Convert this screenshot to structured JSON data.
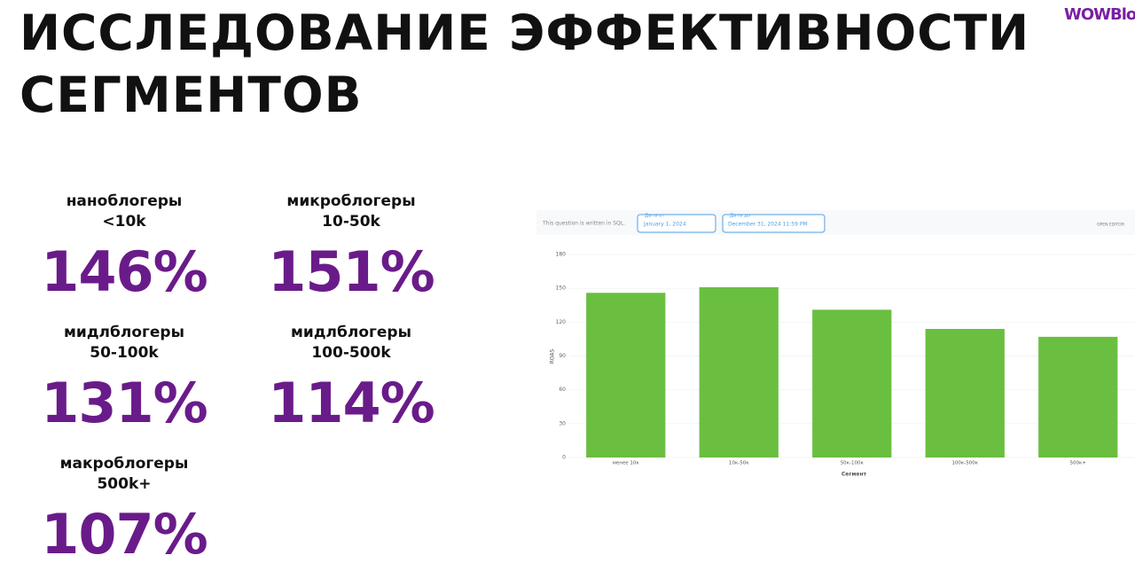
{
  "header": {
    "title_lines": [
      "ИССЛЕДОВАНИЕ ЭФФЕКТИВНОСТИ",
      "СЕГМЕНТОВ"
    ],
    "logo": "WOWBlog"
  },
  "stats": [
    {
      "label_lines": [
        "наноблогеры",
        "<10k"
      ],
      "value": "146%"
    },
    {
      "label_lines": [
        "микроблогеры",
        "10-50k"
      ],
      "value": "151%"
    },
    {
      "label_lines": [
        "мидлблогеры",
        "50-100k"
      ],
      "value": "131%"
    },
    {
      "label_lines": [
        "мидлблогеры",
        "100-500k"
      ],
      "value": "114%"
    },
    {
      "label_lines": [
        "макроблогеры",
        "500k+"
      ],
      "value": "107%"
    }
  ],
  "toolbar": {
    "note": "This question is written in SQL.",
    "filters": [
      {
        "label": "Дата от",
        "value": "January 1, 2024"
      },
      {
        "label": "Дата до",
        "value": "December 31, 2024 11:59 PM"
      }
    ],
    "button": "OPEN EDITOR"
  },
  "chart_data": {
    "type": "bar",
    "categories": [
      "менее 10к",
      "10к-50к",
      "50к-100к",
      "100к-500к",
      "500к+"
    ],
    "values": [
      146,
      151,
      131,
      114,
      107
    ],
    "color": "#6abf40",
    "ylim": [
      0,
      180
    ],
    "yticks": [
      0,
      30,
      60,
      90,
      120,
      150,
      180
    ],
    "grid": true,
    "y_label": "ROAS",
    "x_label": "Сегмент"
  }
}
